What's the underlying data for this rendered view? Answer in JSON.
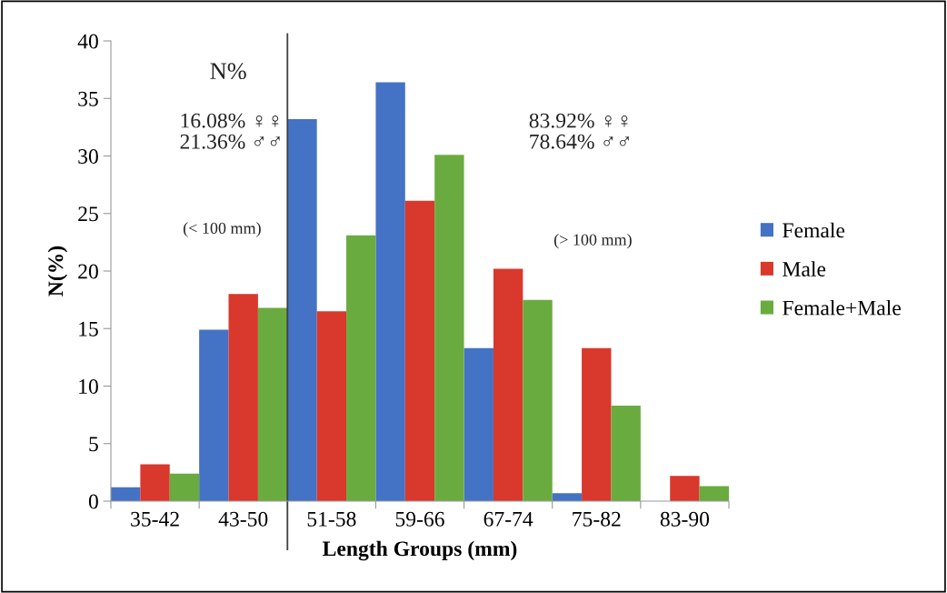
{
  "chart_data": {
    "type": "bar",
    "xlabel": "Length Groups (mm)",
    "ylabel": "N(%)",
    "categories": [
      "35-42",
      "43-50",
      "51-58",
      "59-66",
      "67-74",
      "75-82",
      "83-90"
    ],
    "series": [
      {
        "name": "Female",
        "color": "#4472c4",
        "values": [
          1.2,
          14.9,
          33.2,
          36.4,
          13.3,
          0.7,
          0
        ]
      },
      {
        "name": "Male",
        "color": "#d9382c",
        "values": [
          3.2,
          18.0,
          16.5,
          26.1,
          20.2,
          13.3,
          2.2
        ]
      },
      {
        "name": "Female+Male",
        "color": "#6aab3f",
        "values": [
          2.4,
          16.8,
          23.1,
          30.1,
          17.5,
          8.3,
          1.3
        ]
      }
    ],
    "ylim": [
      0,
      40
    ],
    "yticks": [
      0,
      5,
      10,
      15,
      20,
      25,
      30,
      35,
      40
    ],
    "annotations": [
      "N%",
      "16.08% ♀♀\n21.36% ♂♂",
      "(< 100 mm)",
      "83.92% ♀♀\n78.64% ♂♂",
      "(> 100 mm)"
    ],
    "legend": "right",
    "grid": false
  }
}
